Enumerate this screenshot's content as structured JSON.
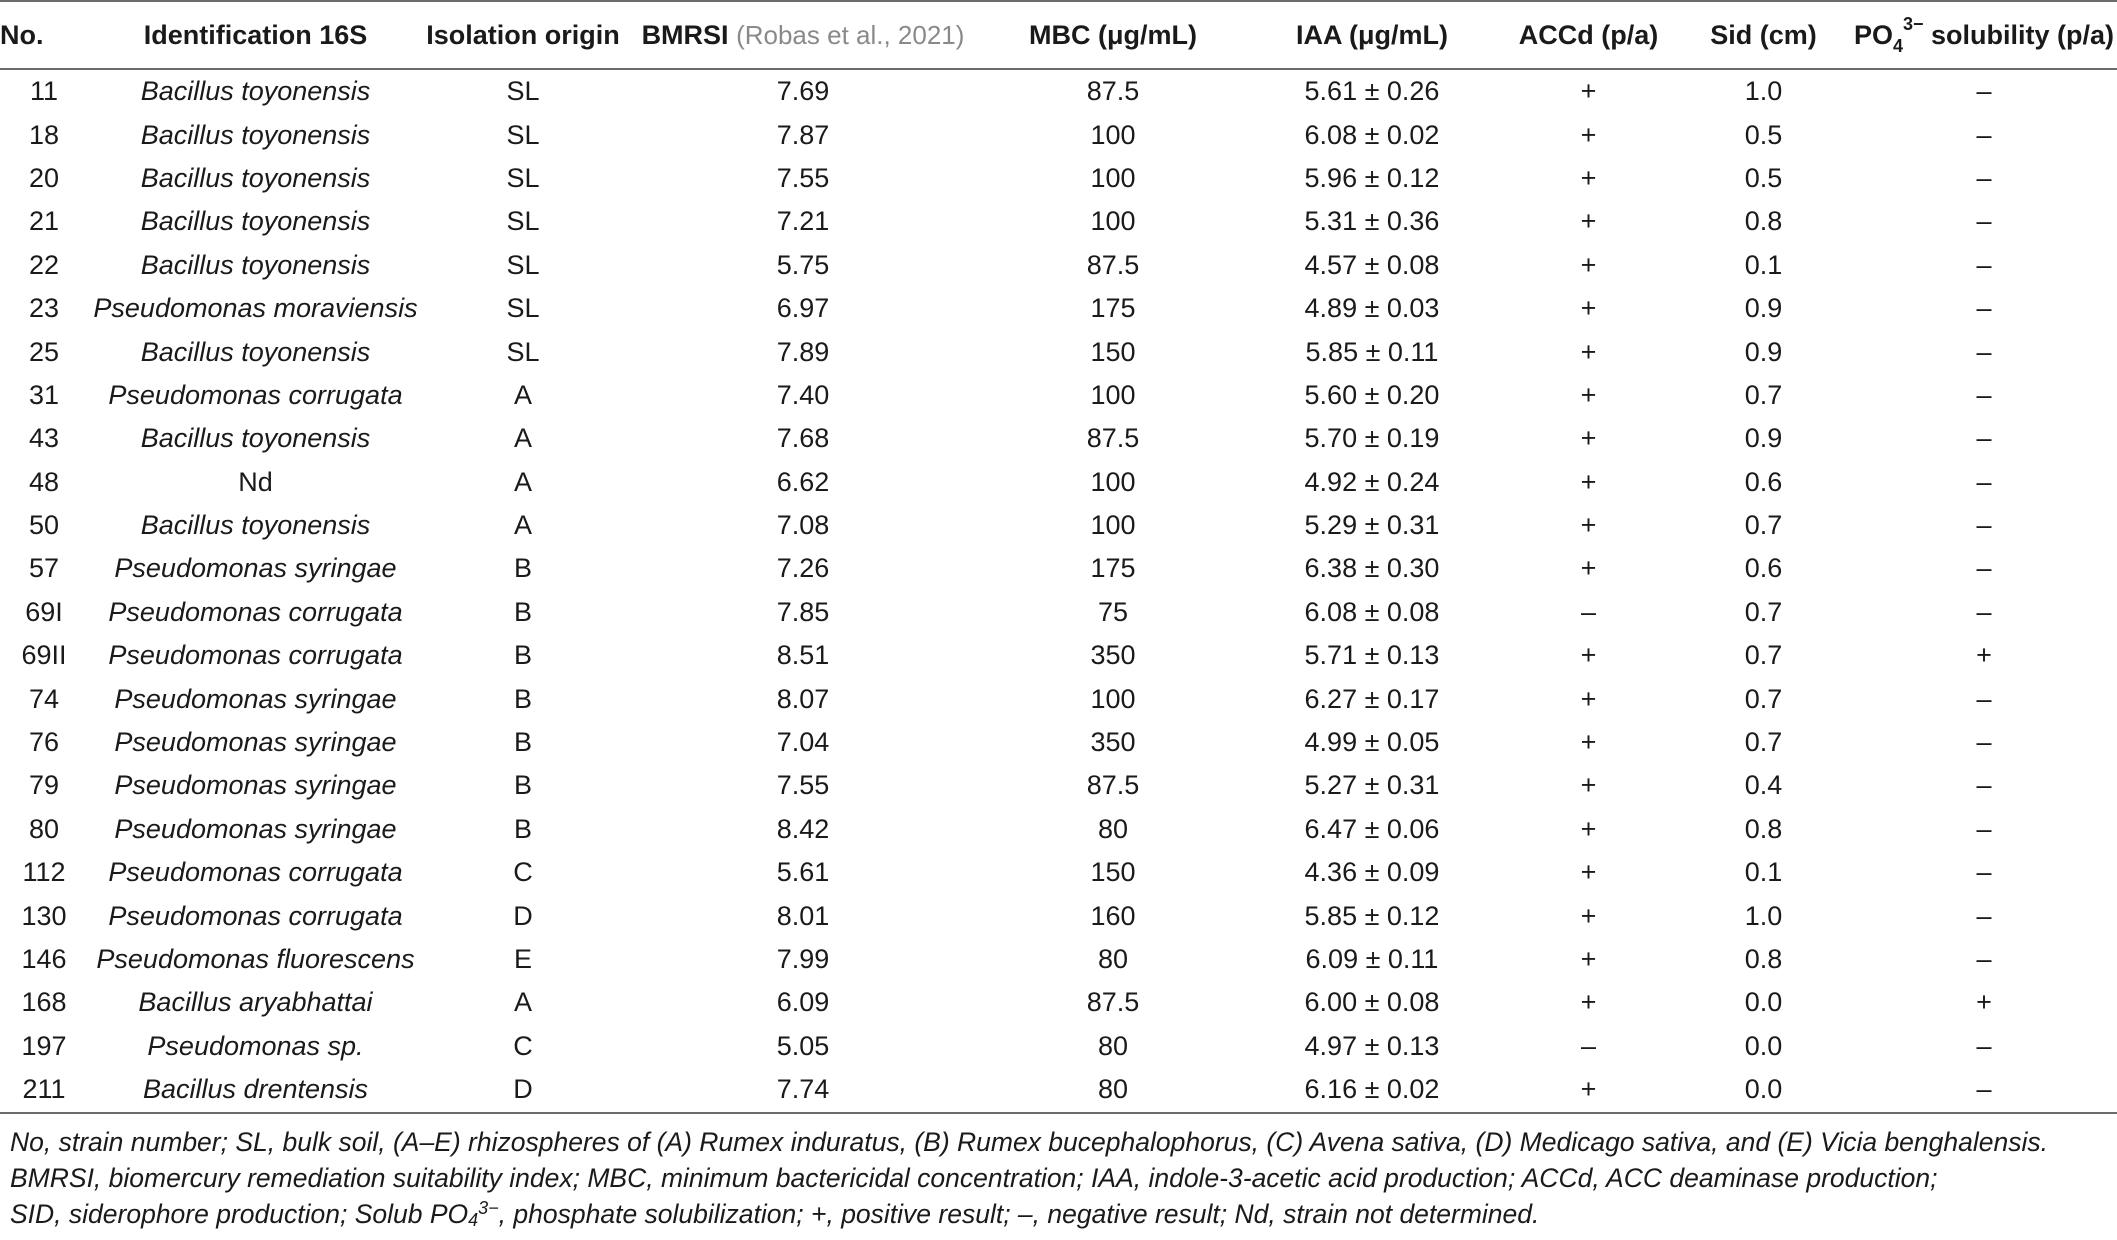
{
  "header": {
    "no": "No.",
    "identification": "Identification 16S",
    "isolation": "Isolation origin",
    "bmrsi": "BMRSI",
    "bmrsi_cite": "(Robas et al., 2021)",
    "mbc": "MBC (μg/mL)",
    "iaa": "IAA (μg/mL)",
    "accd": "ACCd (p/a)",
    "sid": "Sid (cm)",
    "po4_base": "PO",
    "po4_sub": "4",
    "po4_sup": "3−",
    "po4_rest": " solubility (p/a)"
  },
  "rows": [
    {
      "no": "11",
      "id": "Bacillus toyonensis",
      "origin": "SL",
      "bmrsi": "7.69",
      "mbc": "87.5",
      "iaa": "5.61 ± 0.26",
      "accd": "+",
      "sid": "1.0",
      "po4": "–"
    },
    {
      "no": "18",
      "id": "Bacillus toyonensis",
      "origin": "SL",
      "bmrsi": "7.87",
      "mbc": "100",
      "iaa": "6.08 ± 0.02",
      "accd": "+",
      "sid": "0.5",
      "po4": "–"
    },
    {
      "no": "20",
      "id": "Bacillus toyonensis",
      "origin": "SL",
      "bmrsi": "7.55",
      "mbc": "100",
      "iaa": "5.96 ± 0.12",
      "accd": "+",
      "sid": "0.5",
      "po4": "–"
    },
    {
      "no": "21",
      "id": "Bacillus toyonensis",
      "origin": "SL",
      "bmrsi": "7.21",
      "mbc": "100",
      "iaa": "5.31 ± 0.36",
      "accd": "+",
      "sid": "0.8",
      "po4": "–"
    },
    {
      "no": "22",
      "id": "Bacillus toyonensis",
      "origin": "SL",
      "bmrsi": "5.75",
      "mbc": "87.5",
      "iaa": "4.57 ± 0.08",
      "accd": "+",
      "sid": "0.1",
      "po4": "–"
    },
    {
      "no": "23",
      "id": "Pseudomonas moraviensis",
      "origin": "SL",
      "bmrsi": "6.97",
      "mbc": "175",
      "iaa": "4.89 ± 0.03",
      "accd": "+",
      "sid": "0.9",
      "po4": "–"
    },
    {
      "no": "25",
      "id": "Bacillus toyonensis",
      "origin": "SL",
      "bmrsi": "7.89",
      "mbc": "150",
      "iaa": "5.85 ± 0.11",
      "accd": "+",
      "sid": "0.9",
      "po4": "–"
    },
    {
      "no": "31",
      "id": "Pseudomonas corrugata",
      "origin": "A",
      "bmrsi": "7.40",
      "mbc": "100",
      "iaa": "5.60 ± 0.20",
      "accd": "+",
      "sid": "0.7",
      "po4": "–"
    },
    {
      "no": "43",
      "id": "Bacillus toyonensis",
      "origin": "A",
      "bmrsi": "7.68",
      "mbc": "87.5",
      "iaa": "5.70 ± 0.19",
      "accd": "+",
      "sid": "0.9",
      "po4": "–"
    },
    {
      "no": "48",
      "id": "Nd",
      "origin": "A",
      "bmrsi": "6.62",
      "mbc": "100",
      "iaa": "4.92 ± 0.24",
      "accd": "+",
      "sid": "0.6",
      "po4": "–"
    },
    {
      "no": "50",
      "id": "Bacillus toyonensis",
      "origin": "A",
      "bmrsi": "7.08",
      "mbc": "100",
      "iaa": "5.29 ± 0.31",
      "accd": "+",
      "sid": "0.7",
      "po4": "–"
    },
    {
      "no": "57",
      "id": "Pseudomonas syringae",
      "origin": "B",
      "bmrsi": "7.26",
      "mbc": "175",
      "iaa": "6.38 ± 0.30",
      "accd": "+",
      "sid": "0.6",
      "po4": "–"
    },
    {
      "no": "69I",
      "id": "Pseudomonas corrugata",
      "origin": "B",
      "bmrsi": "7.85",
      "mbc": "75",
      "iaa": "6.08 ± 0.08",
      "accd": "–",
      "sid": "0.7",
      "po4": "–"
    },
    {
      "no": "69II",
      "id": "Pseudomonas corrugata",
      "origin": "B",
      "bmrsi": "8.51",
      "mbc": "350",
      "iaa": "5.71 ± 0.13",
      "accd": "+",
      "sid": "0.7",
      "po4": "+"
    },
    {
      "no": "74",
      "id": "Pseudomonas syringae",
      "origin": "B",
      "bmrsi": "8.07",
      "mbc": "100",
      "iaa": "6.27 ± 0.17",
      "accd": "+",
      "sid": "0.7",
      "po4": "–"
    },
    {
      "no": "76",
      "id": "Pseudomonas syringae",
      "origin": "B",
      "bmrsi": "7.04",
      "mbc": "350",
      "iaa": "4.99 ± 0.05",
      "accd": "+",
      "sid": "0.7",
      "po4": "–"
    },
    {
      "no": "79",
      "id": "Pseudomonas syringae",
      "origin": "B",
      "bmrsi": "7.55",
      "mbc": "87.5",
      "iaa": "5.27 ± 0.31",
      "accd": "+",
      "sid": "0.4",
      "po4": "–"
    },
    {
      "no": "80",
      "id": "Pseudomonas syringae",
      "origin": "B",
      "bmrsi": "8.42",
      "mbc": "80",
      "iaa": "6.47 ± 0.06",
      "accd": "+",
      "sid": "0.8",
      "po4": "–"
    },
    {
      "no": "112",
      "id": "Pseudomonas corrugata",
      "origin": "C",
      "bmrsi": "5.61",
      "mbc": "150",
      "iaa": "4.36 ± 0.09",
      "accd": "+",
      "sid": "0.1",
      "po4": "–"
    },
    {
      "no": "130",
      "id": "Pseudomonas corrugata",
      "origin": "D",
      "bmrsi": "8.01",
      "mbc": "160",
      "iaa": "5.85 ± 0.12",
      "accd": "+",
      "sid": "1.0",
      "po4": "–"
    },
    {
      "no": "146",
      "id": "Pseudomonas fluorescens",
      "origin": "E",
      "bmrsi": "7.99",
      "mbc": "80",
      "iaa": "6.09 ± 0.11",
      "accd": "+",
      "sid": "0.8",
      "po4": "–"
    },
    {
      "no": "168",
      "id": "Bacillus aryabhattai",
      "origin": "A",
      "bmrsi": "6.09",
      "mbc": "87.5",
      "iaa": "6.00 ± 0.08",
      "accd": "+",
      "sid": "0.0",
      "po4": "+"
    },
    {
      "no": "197",
      "id": "Pseudomonas sp.",
      "origin": "C",
      "bmrsi": "5.05",
      "mbc": "80",
      "iaa": "4.97 ± 0.13",
      "accd": "–",
      "sid": "0.0",
      "po4": "–"
    },
    {
      "no": "211",
      "id": "Bacillus drentensis",
      "origin": "D",
      "bmrsi": "7.74",
      "mbc": "80",
      "iaa": "6.16 ± 0.02",
      "accd": "+",
      "sid": "0.0",
      "po4": "–"
    }
  ],
  "footnote": {
    "line1": "No, strain number; SL, bulk soil, (A–E) rhizospheres of (A) Rumex induratus, (B) Rumex bucephalophorus, (C) Avena sativa, (D) Medicago sativa, and (E) Vicia benghalensis.",
    "line2": "BMRSI, biomercury remediation suitability index; MBC, minimum bactericidal concentration; IAA, indole-3-acetic acid production; ACCd, ACC deaminase production;",
    "line3_a": "SID, siderophore production; Solub PO",
    "line3_sub": "4",
    "line3_sup": "3−",
    "line3_b": ", phosphate solubilization; +, positive result; –, negative result; Nd, strain not determined."
  }
}
